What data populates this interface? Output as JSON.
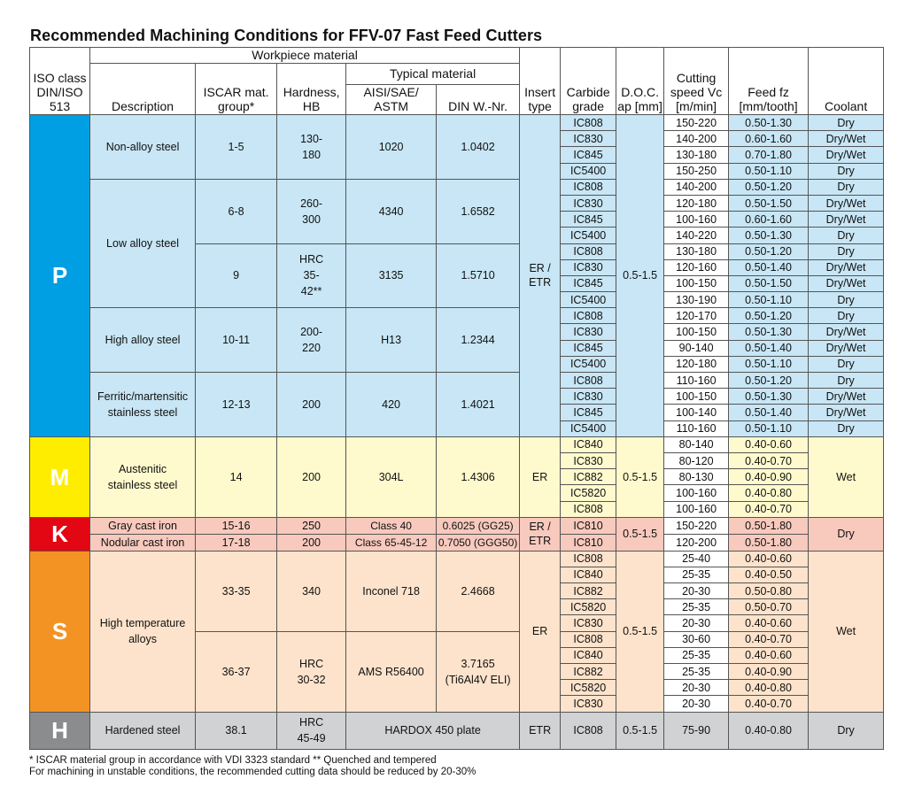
{
  "title": "Recommended Machining Conditions for FFV-07 Fast Feed Cutters",
  "colors": {
    "P_iso": "#009fe3",
    "P_bg": "#c8e6f5",
    "M_iso": "#ffed00",
    "M_bg": "#fffacd",
    "K_iso": "#e30613",
    "K_bg": "#f8c9bd",
    "S_iso": "#f39323",
    "S_bg": "#fde3cb",
    "H_iso": "#8b8c8e",
    "H_bg": "#d1d2d4"
  },
  "headers": {
    "workpiece_material": "Workpiece material",
    "typical_material": "Typical material",
    "iso_class": "ISO class DIN/ISO 513",
    "description": "Description",
    "iscar_group": "ISCAR mat. group*",
    "hardness": "Hardness, HB",
    "aisi": "AISI/SAE/ ASTM",
    "din": "DIN W.-Nr.",
    "insert_type": "Insert type",
    "carbide_grade": "Carbide grade",
    "doc": "D.O.C. ap [mm]",
    "cutting_speed": "Cutting speed Vc [m/min]",
    "feed": "Feed fz [mm/tooth]",
    "coolant": "Coolant"
  },
  "iso_groups": [
    {
      "iso": "P",
      "insert": "ER / ETR",
      "doc": "0.5-1.5",
      "materials": [
        {
          "description": "Non-alloy steel",
          "rows": 4,
          "subs": [
            {
              "group": "1-5",
              "hardness": "130-180",
              "aisi": "1020",
              "din": "1.0402",
              "rows": 4
            }
          ]
        },
        {
          "description": "Low alloy steel",
          "rows": 8,
          "subs": [
            {
              "group": "6-8",
              "hardness": "260-300",
              "aisi": "4340",
              "din": "1.6582",
              "rows": 4
            },
            {
              "group": "9",
              "hardness": "HRC 35-42**",
              "aisi": "3135",
              "din": "1.5710",
              "rows": 4
            }
          ]
        },
        {
          "description": "High alloy steel",
          "rows": 4,
          "subs": [
            {
              "group": "10-11",
              "hardness": "200-220",
              "aisi": "H13",
              "din": "1.2344",
              "rows": 4
            }
          ]
        },
        {
          "description": "Ferritic/martensitic stainless steel",
          "rows": 4,
          "subs": [
            {
              "group": "12-13",
              "hardness": "200",
              "aisi": "420",
              "din": "1.4021",
              "rows": 4
            }
          ]
        }
      ],
      "cutting": [
        {
          "grade": "IC808",
          "speed": "150-220",
          "feed": "0.50-1.30",
          "coolant": "Dry"
        },
        {
          "grade": "IC830",
          "speed": "140-200",
          "feed": "0.60-1.60",
          "coolant": "Dry/Wet"
        },
        {
          "grade": "IC845",
          "speed": "130-180",
          "feed": "0.70-1.80",
          "coolant": "Dry/Wet"
        },
        {
          "grade": "IC5400",
          "speed": "150-250",
          "feed": "0.50-1.10",
          "coolant": "Dry"
        },
        {
          "grade": "IC808",
          "speed": "140-200",
          "feed": "0.50-1.20",
          "coolant": "Dry"
        },
        {
          "grade": "IC830",
          "speed": "120-180",
          "feed": "0.50-1.50",
          "coolant": "Dry/Wet"
        },
        {
          "grade": "IC845",
          "speed": "100-160",
          "feed": "0.60-1.60",
          "coolant": "Dry/Wet"
        },
        {
          "grade": "IC5400",
          "speed": "140-220",
          "feed": "0.50-1.30",
          "coolant": "Dry"
        },
        {
          "grade": "IC808",
          "speed": "130-180",
          "feed": "0.50-1.20",
          "coolant": "Dry"
        },
        {
          "grade": "IC830",
          "speed": "120-160",
          "feed": "0.50-1.40",
          "coolant": "Dry/Wet"
        },
        {
          "grade": "IC845",
          "speed": "100-150",
          "feed": "0.50-1.50",
          "coolant": "Dry/Wet"
        },
        {
          "grade": "IC5400",
          "speed": "130-190",
          "feed": "0.50-1.10",
          "coolant": "Dry"
        },
        {
          "grade": "IC808",
          "speed": "120-170",
          "feed": "0.50-1.20",
          "coolant": "Dry"
        },
        {
          "grade": "IC830",
          "speed": "100-150",
          "feed": "0.50-1.30",
          "coolant": "Dry/Wet"
        },
        {
          "grade": "IC845",
          "speed": "90-140",
          "feed": "0.50-1.40",
          "coolant": "Dry/Wet"
        },
        {
          "grade": "IC5400",
          "speed": "120-180",
          "feed": "0.50-1.10",
          "coolant": "Dry"
        },
        {
          "grade": "IC808",
          "speed": "110-160",
          "feed": "0.50-1.20",
          "coolant": "Dry"
        },
        {
          "grade": "IC830",
          "speed": "100-150",
          "feed": "0.50-1.30",
          "coolant": "Dry/Wet"
        },
        {
          "grade": "IC845",
          "speed": "100-140",
          "feed": "0.50-1.40",
          "coolant": "Dry/Wet"
        },
        {
          "grade": "IC5400",
          "speed": "110-160",
          "feed": "0.50-1.10",
          "coolant": "Dry"
        }
      ]
    },
    {
      "iso": "M",
      "insert": "ER",
      "doc": "0.5-1.5",
      "coolant_merged": "Wet",
      "materials": [
        {
          "description": "Austenitic stainless steel",
          "rows": 5,
          "subs": [
            {
              "group": "14",
              "hardness": "200",
              "aisi": "304L",
              "din": "1.4306",
              "rows": 5
            }
          ]
        }
      ],
      "cutting": [
        {
          "grade": "IC840",
          "speed": "80-140",
          "feed": "0.40-0.60"
        },
        {
          "grade": "IC830",
          "speed": "80-120",
          "feed": "0.40-0.70"
        },
        {
          "grade": "IC882",
          "speed": "80-130",
          "feed": "0.40-0.90"
        },
        {
          "grade": "IC5820",
          "speed": "100-160",
          "feed": "0.40-0.80"
        },
        {
          "grade": "IC808",
          "speed": "100-160",
          "feed": "0.40-0.70"
        }
      ]
    },
    {
      "iso": "K",
      "insert": "ER / ETR",
      "doc": "0.5-1.5",
      "coolant_merged": "Dry",
      "materials": [
        {
          "description": "Gray cast iron",
          "rows": 1,
          "subs": [
            {
              "group": "15-16",
              "hardness": "250",
              "aisi": "Class 40",
              "din": "0.6025 (GG25)",
              "rows": 1
            }
          ]
        },
        {
          "description": "Nodular cast iron",
          "rows": 1,
          "subs": [
            {
              "group": "17-18",
              "hardness": "200",
              "aisi": "Class 65-45-12",
              "din": "0.7050 (GGG50)",
              "rows": 1
            }
          ]
        }
      ],
      "cutting": [
        {
          "grade": "IC810",
          "speed": "150-220",
          "feed": "0.50-1.80"
        },
        {
          "grade": "IC810",
          "speed": "120-200",
          "feed": "0.50-1.80"
        }
      ]
    },
    {
      "iso": "S",
      "insert": "ER",
      "doc": "0.5-1.5",
      "coolant_merged": "Wet",
      "materials": [
        {
          "description": "High temperature alloys",
          "rows": 10,
          "subs": [
            {
              "group": "33-35",
              "hardness": "340",
              "aisi": "Inconel 718",
              "din": "2.4668",
              "rows": 5
            },
            {
              "group": "36-37",
              "hardness": "HRC 30-32",
              "aisi": "AMS R56400",
              "din": "3.7165 (Ti6Al4V ELI)",
              "rows": 5
            }
          ]
        }
      ],
      "cutting": [
        {
          "grade": "IC808",
          "speed": "25-40",
          "feed": "0.40-0.60"
        },
        {
          "grade": "IC840",
          "speed": "25-35",
          "feed": "0.40-0.50"
        },
        {
          "grade": "IC882",
          "speed": "20-30",
          "feed": "0.50-0.80"
        },
        {
          "grade": "IC5820",
          "speed": "25-35",
          "feed": "0.50-0.70"
        },
        {
          "grade": "IC830",
          "speed": "20-30",
          "feed": "0.40-0.60"
        },
        {
          "grade": "IC808",
          "speed": "30-60",
          "feed": "0.40-0.70"
        },
        {
          "grade": "IC840",
          "speed": "25-35",
          "feed": "0.40-0.60"
        },
        {
          "grade": "IC882",
          "speed": "25-35",
          "feed": "0.40-0.90"
        },
        {
          "grade": "IC5820",
          "speed": "20-30",
          "feed": "0.40-0.80"
        },
        {
          "grade": "IC830",
          "speed": "20-30",
          "feed": "0.40-0.70"
        }
      ]
    },
    {
      "iso": "H",
      "insert": "ETR",
      "doc": "0.5-1.5",
      "hardened": {
        "description": "Hardened steel",
        "group": "38.1",
        "hardness": "HRC 45-49",
        "typical": "HARDOX 450 plate",
        "grade": "IC808",
        "speed": "75-90",
        "feed": "0.40-0.80",
        "coolant": "Dry"
      }
    }
  ],
  "footnotes": [
    "* ISCAR material group in accordance with VDI 3323 standard ** Quenched and tempered",
    "For machining in unstable conditions, the recommended cutting data should be reduced by 20-30%"
  ]
}
